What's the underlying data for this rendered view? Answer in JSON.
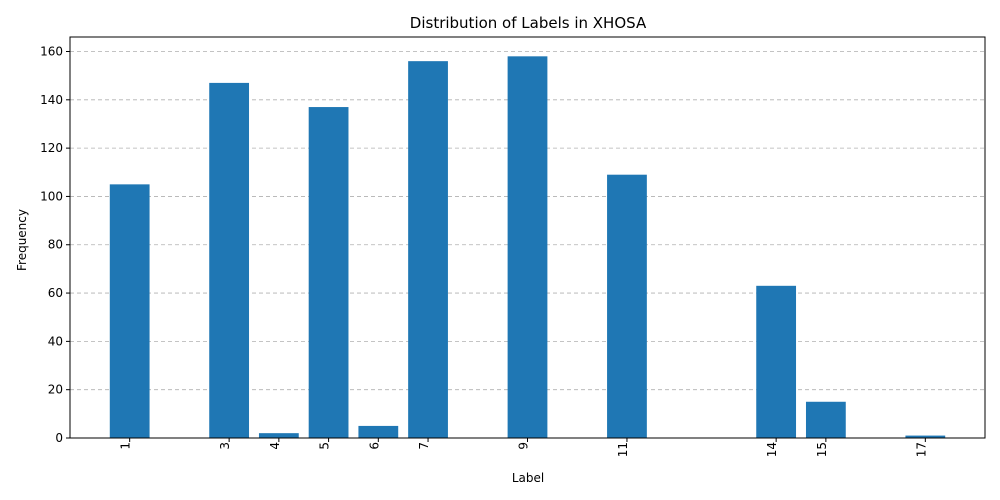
{
  "chart_data": {
    "type": "bar",
    "title": "Distribution of Labels in XHOSA",
    "xlabel": "Label",
    "ylabel": "Frequency",
    "x": [
      1,
      3,
      4,
      5,
      6,
      7,
      9,
      11,
      14,
      15,
      17
    ],
    "values": [
      105,
      147,
      2,
      137,
      5,
      156,
      158,
      109,
      63,
      15,
      1
    ],
    "xlim": [
      -0.2,
      18.2
    ],
    "ylim": [
      0,
      166
    ],
    "yticks": [
      0,
      20,
      40,
      60,
      80,
      100,
      120,
      140,
      160
    ],
    "xticks": [
      1,
      3,
      4,
      5,
      6,
      7,
      9,
      11,
      14,
      15,
      17
    ],
    "xtick_rotation": -90,
    "grid": "y-dashed",
    "bar_color": "#1f77b4"
  }
}
